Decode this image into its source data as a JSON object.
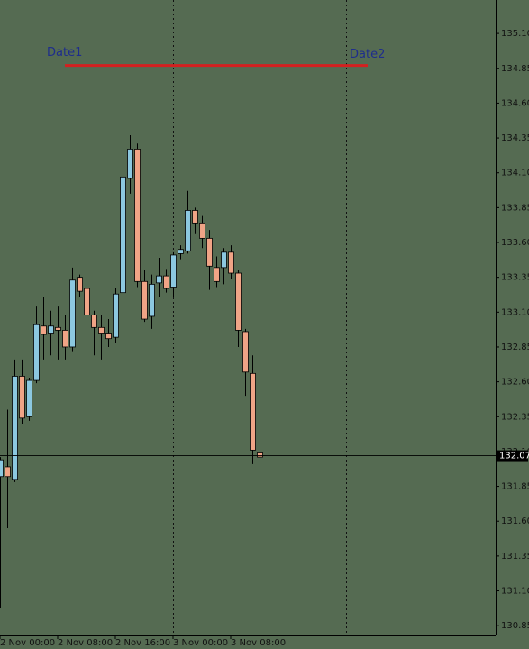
{
  "chart_data": {
    "type": "candlestick",
    "x": [
      0,
      1,
      2,
      3,
      4,
      5,
      6,
      7,
      8,
      9,
      10,
      11,
      12,
      13,
      14,
      15,
      16,
      17,
      18,
      19,
      20,
      21,
      22,
      23,
      24,
      25,
      26,
      27,
      28,
      29,
      30,
      31,
      32,
      33,
      34,
      35,
      36
    ],
    "open": [
      131.92,
      131.99,
      131.9,
      132.64,
      132.35,
      132.61,
      133.0,
      132.95,
      132.99,
      132.97,
      132.85,
      133.35,
      133.27,
      133.08,
      132.99,
      132.95,
      132.92,
      133.24,
      134.06,
      134.27,
      133.32,
      133.07,
      133.31,
      133.36,
      133.28,
      133.52,
      133.54,
      133.83,
      133.74,
      133.63,
      133.42,
      133.42,
      133.53,
      133.38,
      132.96,
      132.66,
      132.09
    ],
    "high": [
      132.06,
      132.4,
      132.76,
      132.76,
      132.63,
      133.14,
      133.21,
      133.11,
      133.14,
      133.08,
      133.42,
      133.37,
      133.3,
      133.11,
      133.08,
      133.05,
      133.27,
      134.51,
      134.37,
      134.31,
      133.4,
      133.37,
      133.49,
      133.41,
      133.53,
      133.58,
      133.97,
      133.85,
      133.79,
      133.69,
      133.5,
      133.56,
      133.58,
      133.4,
      132.98,
      132.79,
      132.12
    ],
    "low": [
      130.98,
      131.55,
      131.88,
      132.3,
      132.32,
      132.59,
      132.76,
      132.79,
      132.76,
      132.76,
      132.82,
      133.21,
      132.79,
      132.79,
      132.76,
      132.85,
      132.88,
      133.21,
      133.95,
      133.28,
      133.03,
      132.98,
      133.21,
      133.24,
      133.21,
      133.48,
      133.52,
      133.66,
      133.56,
      133.26,
      133.28,
      133.3,
      133.34,
      132.85,
      132.5,
      132.01,
      131.8
    ],
    "close": [
      132.04,
      131.92,
      132.64,
      132.34,
      132.61,
      133.01,
      132.94,
      133.0,
      132.97,
      132.85,
      133.33,
      133.25,
      133.08,
      132.99,
      132.95,
      132.91,
      133.23,
      134.07,
      134.27,
      133.32,
      133.05,
      133.3,
      133.36,
      133.27,
      133.51,
      133.55,
      133.83,
      133.74,
      133.63,
      133.43,
      133.32,
      133.53,
      133.38,
      132.97,
      132.67,
      132.11,
      132.06
    ],
    "up_color": "#8cc8e0",
    "down_color": "#f0a486",
    "xlim": [
      0,
      68.75
    ],
    "ylim": [
      130.78,
      135.34
    ],
    "xticks": [
      {
        "value": 0,
        "label": "2 Nov 00:00"
      },
      {
        "value": 8,
        "label": "2 Nov 08:00"
      },
      {
        "value": 16,
        "label": "2 Nov 16:00"
      },
      {
        "value": 24,
        "label": "3 Nov 00:00"
      },
      {
        "value": 32,
        "label": "3 Nov 08:00"
      }
    ],
    "yticks": [
      {
        "value": 135.1,
        "label": "135.10"
      },
      134.85,
      {
        "value": 134.6,
        "label": "134.60"
      },
      134.35,
      {
        "value": 134.1,
        "label": "134.10"
      },
      133.85,
      {
        "value": 133.6,
        "label": "133.60"
      },
      133.35,
      {
        "value": 133.1,
        "label": "133.10"
      },
      132.85,
      {
        "value": 132.6,
        "label": "132.60"
      },
      132.35,
      {
        "value": 132.1,
        "label": "132.10"
      },
      131.85,
      {
        "value": 131.6,
        "label": "131.60"
      },
      131.35,
      {
        "value": 131.1,
        "label": "131.10"
      },
      130.85
    ],
    "current_price": {
      "value": 132.07,
      "label": "132.07"
    },
    "period_separators": [
      24,
      48
    ],
    "trendline": {
      "x": [
        9,
        51
      ],
      "y": 134.87,
      "color": "#d42020"
    },
    "annotations": [
      "Date1",
      "Date2"
    ]
  }
}
